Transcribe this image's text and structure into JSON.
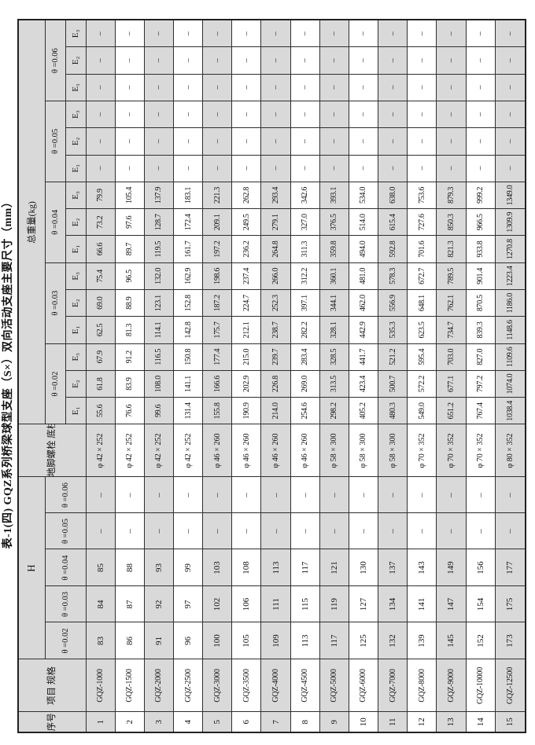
{
  "page_title": "表-1(四)  GQZ系列桥梁球型支座（S×）双向活动支座主要尺寸（mm）",
  "colors": {
    "cell_shade": "#d9d9d9",
    "border": "#2f2f2f",
    "paper": "#ffffff"
  },
  "table": {
    "headers": {
      "seq": "序号",
      "spec": "项目\n规格",
      "h_group": "H",
      "bolt": "地脚螺栓\n底柱",
      "weight_group": "总重量(kg)",
      "theta_labels": [
        "θ =0.02",
        "θ =0.03",
        "θ =0.04",
        "θ =0.05",
        "θ =0.06"
      ],
      "e_labels": [
        "E₁",
        "E₂",
        "E₃"
      ]
    },
    "dash": "–",
    "rows": [
      {
        "no": "1",
        "spec": "GQZ-1000",
        "h": [
          "83",
          "84",
          "85",
          "–",
          "–"
        ],
        "bolt": "φ 42 × 252",
        "w": [
          "55.6",
          "61.8",
          "67.9",
          "62.5",
          "69.0",
          "75.4",
          "66.6",
          "73.2",
          "79.9",
          "–",
          "–",
          "–",
          "–",
          "–",
          "–"
        ]
      },
      {
        "no": "2",
        "spec": "GQZ-1500",
        "h": [
          "86",
          "87",
          "88",
          "–",
          "–"
        ],
        "bolt": "φ 42 × 252",
        "w": [
          "76.6",
          "83.9",
          "91.2",
          "81.3",
          "88.9",
          "96.5",
          "89.7",
          "97.6",
          "105.4",
          "–",
          "–",
          "–",
          "–",
          "–",
          "–"
        ]
      },
      {
        "no": "3",
        "spec": "GQZ-2000",
        "h": [
          "91",
          "92",
          "93",
          "–",
          "–"
        ],
        "bolt": "φ 42 × 252",
        "w": [
          "99.6",
          "108.0",
          "116.5",
          "114.1",
          "123.1",
          "132.0",
          "119.5",
          "128.7",
          "137.9",
          "–",
          "–",
          "–",
          "–",
          "–",
          "–"
        ]
      },
      {
        "no": "4",
        "spec": "GQZ-2500",
        "h": [
          "96",
          "97",
          "99",
          "–",
          "–"
        ],
        "bolt": "φ 42 × 252",
        "w": [
          "131.4",
          "141.1",
          "150.8",
          "142.8",
          "152.8",
          "162.9",
          "161.7",
          "172.4",
          "183.1",
          "–",
          "–",
          "–",
          "–",
          "–",
          "–"
        ]
      },
      {
        "no": "5",
        "spec": "GQZ-3000",
        "h": [
          "100",
          "102",
          "103",
          "–",
          "–"
        ],
        "bolt": "φ 46 × 260",
        "w": [
          "155.8",
          "166.6",
          "177.4",
          "175.7",
          "187.2",
          "198.6",
          "197.2",
          "209.1",
          "221.3",
          "–",
          "–",
          "–",
          "–",
          "–",
          "–"
        ]
      },
      {
        "no": "6",
        "spec": "GQZ-3500",
        "h": [
          "105",
          "106",
          "108",
          "–",
          "–"
        ],
        "bolt": "φ 46 × 260",
        "w": [
          "190.9",
          "202.9",
          "215.0",
          "212.1",
          "224.7",
          "237.4",
          "236.2",
          "249.5",
          "262.8",
          "–",
          "–",
          "–",
          "–",
          "–",
          "–"
        ]
      },
      {
        "no": "7",
        "spec": "GQZ-4000",
        "h": [
          "109",
          "111",
          "113",
          "–",
          "–"
        ],
        "bolt": "φ 46 × 260",
        "w": [
          "214.0",
          "226.8",
          "239.7",
          "238.7",
          "252.3",
          "266.0",
          "264.8",
          "279.1",
          "293.4",
          "–",
          "–",
          "–",
          "–",
          "–",
          "–"
        ]
      },
      {
        "no": "8",
        "spec": "GQZ-4500",
        "h": [
          "113",
          "115",
          "117",
          "–",
          "–"
        ],
        "bolt": "φ 46 × 260",
        "w": [
          "254.6",
          "269.0",
          "283.4",
          "282.2",
          "397.1",
          "312.2",
          "311.3",
          "327.0",
          "342.6",
          "–",
          "–",
          "–",
          "–",
          "–",
          "–"
        ]
      },
      {
        "no": "9",
        "spec": "GQZ-5000",
        "h": [
          "117",
          "119",
          "121",
          "–",
          "–"
        ],
        "bolt": "φ 58 × 300",
        "w": [
          "298.2",
          "313.5",
          "328.5",
          "328.1",
          "344.1",
          "360.1",
          "359.8",
          "376.5",
          "393.1",
          "–",
          "–",
          "–",
          "–",
          "–",
          "–"
        ]
      },
      {
        "no": "10",
        "spec": "GQZ-6000",
        "h": [
          "125",
          "127",
          "130",
          "–",
          "–"
        ],
        "bolt": "φ 58 × 300",
        "w": [
          "405.2",
          "423.4",
          "441.7",
          "442.9",
          "462.0",
          "481.0",
          "494.0",
          "514.0",
          "534.0",
          "–",
          "–",
          "–",
          "–",
          "–",
          "–"
        ]
      },
      {
        "no": "11",
        "spec": "GQZ-7000",
        "h": [
          "132",
          "134",
          "137",
          "–",
          "–"
        ],
        "bolt": "φ 58 × 300",
        "w": [
          "480.3",
          "500.7",
          "521.2",
          "535.3",
          "556.9",
          "578.3",
          "592.8",
          "615.4",
          "638.0",
          "–",
          "–",
          "–",
          "–",
          "–",
          "–"
        ]
      },
      {
        "no": "12",
        "spec": "GQZ-8000",
        "h": [
          "139",
          "141",
          "143",
          "–",
          "–"
        ],
        "bolt": "φ 70 × 352",
        "w": [
          "549.0",
          "572.2",
          "595.4",
          "623.5",
          "648.1",
          "672.7",
          "701.6",
          "727.6",
          "753.6",
          "–",
          "–",
          "–",
          "–",
          "–",
          "–"
        ]
      },
      {
        "no": "13",
        "spec": "GQZ-9000",
        "h": [
          "145",
          "147",
          "149",
          "–",
          "–"
        ],
        "bolt": "φ 70 × 352",
        "w": [
          "651.2",
          "677.1",
          "703.0",
          "734.7",
          "762.1",
          "789.5",
          "821.3",
          "850.3",
          "879.3",
          "–",
          "–",
          "–",
          "–",
          "–",
          "–"
        ]
      },
      {
        "no": "14",
        "spec": "GQZ-10000",
        "h": [
          "152",
          "154",
          "156",
          "–",
          "–"
        ],
        "bolt": "φ 70 × 352",
        "w": [
          "767.4",
          "797.2",
          "827.0",
          "839.3",
          "870.5",
          "901.4",
          "933.8",
          "966.5",
          "999.2",
          "–",
          "–",
          "–",
          "–",
          "–",
          "–"
        ]
      },
      {
        "no": "15",
        "spec": "GQZ-12500",
        "h": [
          "173",
          "175",
          "177",
          "–",
          "–"
        ],
        "bolt": "φ 80 × 352",
        "w": [
          "1038.4",
          "1074.0",
          "1109.6",
          "1148.6",
          "1186.0",
          "1223.4",
          "1270.8",
          "1309.9",
          "1349.0",
          "–",
          "–",
          "–",
          "–",
          "–",
          "–"
        ]
      }
    ]
  }
}
